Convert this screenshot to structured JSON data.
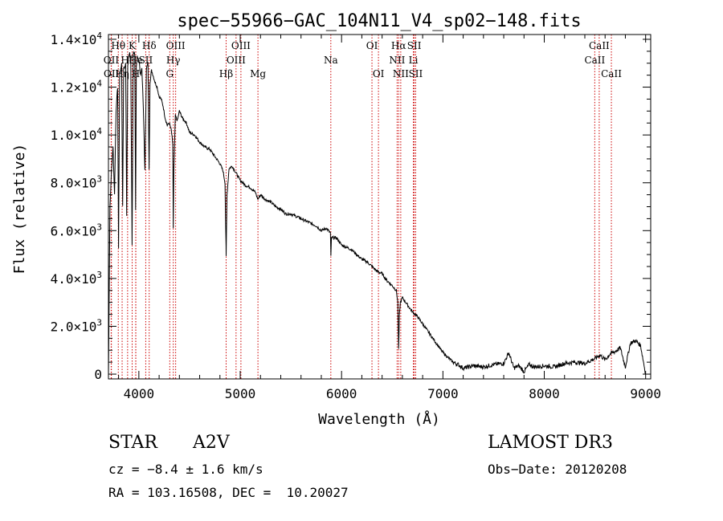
{
  "chart_data": {
    "type": "line",
    "title": "spec−55966−GAC_104N11_V4_sp02−148.fits",
    "xlabel": "Wavelength (Å)",
    "ylabel": "Flux (relative)",
    "xlim": [
      3700,
      9050
    ],
    "ylim": [
      -200,
      14200
    ],
    "xticks": [
      4000,
      5000,
      6000,
      7000,
      8000,
      9000
    ],
    "xtick_labels": [
      "4000",
      "5000",
      "6000",
      "7000",
      "8000",
      "9000"
    ],
    "yticks": [
      0,
      2000,
      4000,
      6000,
      8000,
      10000,
      12000,
      14000
    ],
    "ytick_mantissas": [
      "0",
      "2.0×10",
      "4.0×10",
      "6.0×10",
      "8.0×10",
      "1.0×10",
      "1.2×10",
      "1.4×10"
    ],
    "ytick_exponents": [
      "",
      "3",
      "3",
      "3",
      "3",
      "4",
      "4",
      "4"
    ],
    "series": [
      {
        "name": "spectrum",
        "x": [
          3700,
          3715,
          3730,
          3745,
          3760,
          3775,
          3790,
          3800,
          3810,
          3820,
          3830,
          3840,
          3850,
          3860,
          3870,
          3880,
          3890,
          3900,
          3910,
          3920,
          3933,
          3945,
          3955,
          3960,
          3968,
          3975,
          3985,
          3995,
          4005,
          4015,
          4030,
          4045,
          4060,
          4075,
          4090,
          4101,
          4110,
          4125,
          4140,
          4160,
          4180,
          4200,
          4220,
          4240,
          4260,
          4280,
          4300,
          4320,
          4335,
          4340,
          4345,
          4360,
          4380,
          4400,
          4430,
          4470,
          4500,
          4550,
          4600,
          4650,
          4700,
          4750,
          4800,
          4830,
          4850,
          4860,
          4861,
          4870,
          4890,
          4920,
          4960,
          5000,
          5050,
          5100,
          5150,
          5175,
          5200,
          5250,
          5300,
          5350,
          5400,
          5450,
          5500,
          5550,
          5600,
          5650,
          5700,
          5750,
          5800,
          5850,
          5890,
          5895,
          5900,
          5950,
          6000,
          6050,
          6100,
          6150,
          6200,
          6250,
          6300,
          6350,
          6400,
          6450,
          6500,
          6540,
          6555,
          6563,
          6570,
          6580,
          6600,
          6650,
          6700,
          6750,
          6800,
          6850,
          6900,
          6950,
          7000,
          7050,
          7100,
          7150,
          7200,
          7300,
          7400,
          7500,
          7600,
          7650,
          7700,
          7750,
          7800,
          7850,
          7900,
          8000,
          8100,
          8200,
          8300,
          8400,
          8450,
          8500,
          8550,
          8600,
          8650,
          8700,
          8750,
          8800,
          8850,
          8900,
          8950,
          9000
        ],
        "y": [
          -100,
          7000,
          8500,
          9500,
          7500,
          11000,
          12000,
          5300,
          12600,
          12700,
          13000,
          7000,
          12800,
          12800,
          13000,
          6600,
          12900,
          13300,
          13400,
          13100,
          5400,
          13400,
          13500,
          13300,
          6800,
          12800,
          13300,
          13200,
          13000,
          12500,
          12800,
          11000,
          8500,
          12800,
          13000,
          8600,
          12200,
          12700,
          12500,
          12200,
          12000,
          11600,
          11500,
          11200,
          10700,
          10400,
          10500,
          10200,
          9600,
          6100,
          8500,
          10800,
          10600,
          11000,
          10700,
          10500,
          10100,
          10000,
          9700,
          9500,
          9400,
          9100,
          8800,
          8500,
          8000,
          5300,
          4900,
          7500,
          8600,
          8700,
          8400,
          8100,
          7900,
          7800,
          7600,
          7300,
          7500,
          7300,
          7200,
          7000,
          6900,
          6700,
          6700,
          6600,
          6500,
          6400,
          6300,
          6200,
          6000,
          6100,
          5900,
          4900,
          5700,
          5700,
          5400,
          5300,
          5200,
          5000,
          4800,
          4700,
          4500,
          4300,
          4200,
          3900,
          3700,
          3500,
          3000,
          1000,
          2400,
          3000,
          3200,
          2900,
          2600,
          2400,
          2100,
          1800,
          1500,
          1200,
          900,
          700,
          500,
          400,
          250,
          350,
          300,
          400,
          450,
          900,
          250,
          350,
          100,
          400,
          300,
          350,
          300,
          450,
          500,
          450,
          550,
          650,
          800,
          600,
          850,
          950,
          1100,
          300,
          1300,
          1400,
          1200,
          0
        ]
      }
    ],
    "lines": [
      {
        "label": "Hθ",
        "x": 3797,
        "row": 0
      },
      {
        "label": "OII",
        "x": 3727,
        "row": 1
      },
      {
        "label": "OII",
        "x": 3729,
        "row": 2
      },
      {
        "label": "Hη",
        "x": 3835,
        "row": 2
      },
      {
        "label": "Hζ",
        "x": 3889,
        "row": 1
      },
      {
        "label": "He",
        "x": 3970,
        "row": 1
      },
      {
        "label": "K",
        "x": 3934,
        "row": 0
      },
      {
        "label": "H",
        "x": 3969,
        "row": 2
      },
      {
        "label": "Hδ",
        "x": 4102,
        "row": 0
      },
      {
        "label": "SII",
        "x": 4068,
        "row": 1
      },
      {
        "label": "OIII",
        "x": 4363,
        "row": 0
      },
      {
        "label": "Hγ",
        "x": 4340,
        "row": 1
      },
      {
        "label": "G",
        "x": 4305,
        "row": 2
      },
      {
        "label": "OIII",
        "x": 5007,
        "row": 0
      },
      {
        "label": "OIII",
        "x": 4959,
        "row": 1
      },
      {
        "label": "Hβ",
        "x": 4861,
        "row": 2
      },
      {
        "label": "Mg",
        "x": 5175,
        "row": 2
      },
      {
        "label": "Na",
        "x": 5894,
        "row": 1
      },
      {
        "label": "OI",
        "x": 6300,
        "row": 0
      },
      {
        "label": "OI",
        "x": 6364,
        "row": 2
      },
      {
        "label": "Hα",
        "x": 6563,
        "row": 0
      },
      {
        "label": "NII",
        "x": 6548,
        "row": 1
      },
      {
        "label": "NII",
        "x": 6584,
        "row": 2
      },
      {
        "label": "SII",
        "x": 6717,
        "row": 0
      },
      {
        "label": "Li",
        "x": 6708,
        "row": 1
      },
      {
        "label": "SII",
        "x": 6731,
        "row": 2
      },
      {
        "label": "CaII",
        "x": 8542,
        "row": 0
      },
      {
        "label": "CaII",
        "x": 8498,
        "row": 1
      },
      {
        "label": "CaII",
        "x": 8662,
        "row": 2
      }
    ]
  },
  "info": {
    "object_class": "STAR",
    "subclass": "A2V",
    "survey": "LAMOST DR3",
    "cz": "cz = −8.4 ± 1.6 km/s",
    "obs_date": "Obs−Date: 20120208",
    "coords": "RA = 103.16508, DEC =  10.20027"
  },
  "colors": {
    "line_marker": "#cc0000",
    "spectrum": "#000000",
    "axes": "#000000"
  }
}
